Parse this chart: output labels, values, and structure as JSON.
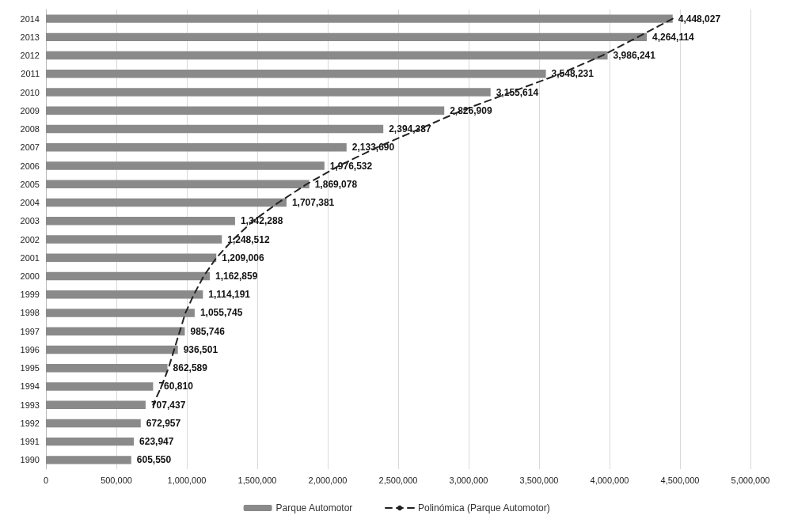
{
  "chart_data": {
    "type": "bar",
    "orientation": "horizontal",
    "categories": [
      "2014",
      "2013",
      "2012",
      "2011",
      "2010",
      "2009",
      "2008",
      "2007",
      "2006",
      "2005",
      "2004",
      "2003",
      "2002",
      "2001",
      "2000",
      "1999",
      "1998",
      "1997",
      "1996",
      "1995",
      "1994",
      "1993",
      "1992",
      "1991",
      "1990"
    ],
    "series": [
      {
        "name": "Parque Automotor",
        "color": "#8a8a8a",
        "values": [
          4448027,
          4264114,
          3986241,
          3548231,
          3155614,
          2826909,
          2394387,
          2133690,
          1976532,
          1869078,
          1707381,
          1342288,
          1248512,
          1209006,
          1162859,
          1114191,
          1055745,
          985746,
          936501,
          862589,
          760810,
          707437,
          672957,
          623947,
          605550
        ],
        "value_labels": [
          "4,448,027",
          "4,264,114",
          "3,986,241",
          "3,548,231",
          "3,155,614",
          "2,826,909",
          "2,394,387",
          "2,133,690",
          "1,976,532",
          "1,869,078",
          "1,707,381",
          "1,342,288",
          "1,248,512",
          "1,209,006",
          "1,162,859",
          "1,114,191",
          "1,055,745",
          "985,746",
          "936,501",
          "862,589",
          "760,810",
          "707,437",
          "672,957",
          "623,947",
          "605,550"
        ]
      },
      {
        "name": "Polinómica (Parque Automotor)",
        "type": "line",
        "color": "#222222",
        "line_style": "dashed",
        "marker": "none",
        "values": [
          4448000,
          4200000,
          3950000,
          3650000,
          3300000,
          2950000,
          2650000,
          2350000,
          2080000,
          1850000,
          1650000,
          1470000,
          1330000,
          1210000,
          1120000,
          1050000,
          990000,
          950000,
          910000,
          870000,
          820000,
          760000,
          null,
          null,
          null
        ]
      }
    ],
    "xlim": [
      0,
      5000000
    ],
    "xticks": [
      {
        "value": 0,
        "label": "0"
      },
      {
        "value": 500000,
        "label": "500,000"
      },
      {
        "value": 1000000,
        "label": "1,000,000"
      },
      {
        "value": 1500000,
        "label": "1,500,000"
      },
      {
        "value": 2000000,
        "label": "2,000,000"
      },
      {
        "value": 2500000,
        "label": "2,500,000"
      },
      {
        "value": 3000000,
        "label": "3,000,000"
      },
      {
        "value": 3500000,
        "label": "3,500,000"
      },
      {
        "value": 4000000,
        "label": "4,000,000"
      },
      {
        "value": 4500000,
        "label": "4,500,000"
      },
      {
        "value": 5000000,
        "label": "5,000,000"
      }
    ],
    "grid": "x",
    "legend": "bottom"
  }
}
